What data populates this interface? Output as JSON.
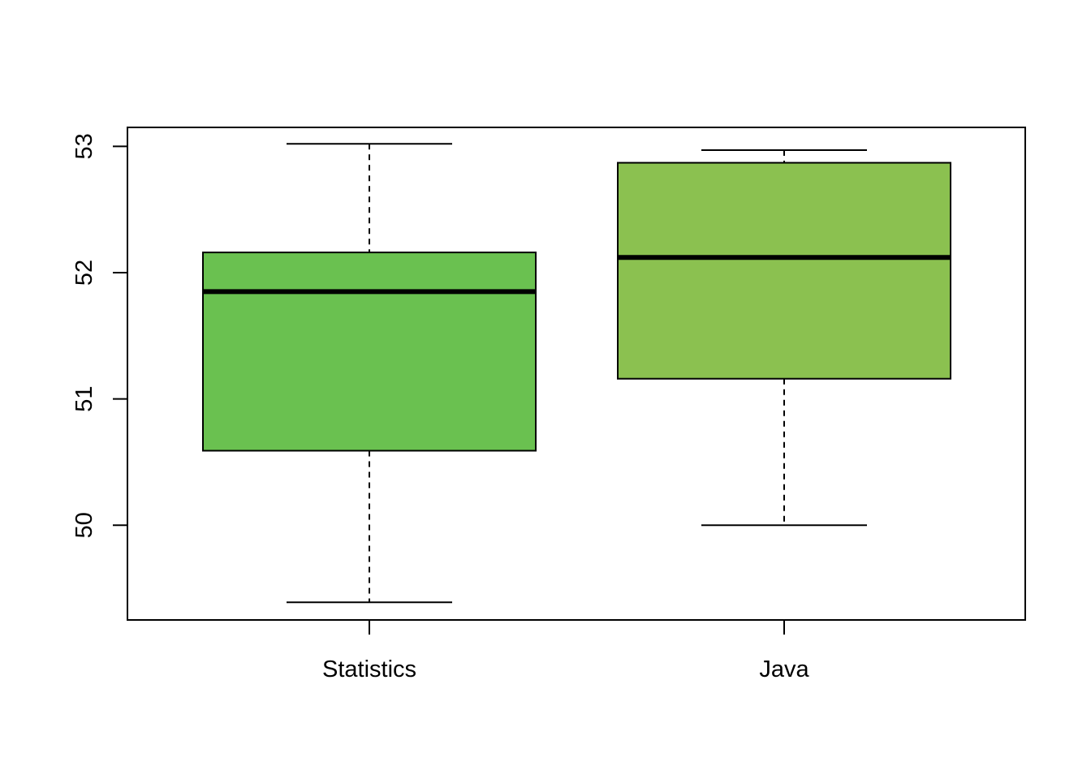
{
  "chart_data": {
    "type": "boxplot",
    "title": "",
    "xlabel": "",
    "ylabel": "",
    "ylim": [
      49.25,
      53.15
    ],
    "y_ticks": [
      50,
      51,
      52,
      53
    ],
    "grid": false,
    "categories": [
      "Statistics",
      "Java"
    ],
    "boxes": [
      {
        "category": "Statistics",
        "min": 49.39,
        "q1": 50.59,
        "median": 51.85,
        "q3": 52.16,
        "max": 53.02,
        "color": "#6AC150"
      },
      {
        "category": "Java",
        "min": 50.0,
        "q1": 51.16,
        "median": 52.12,
        "q3": 52.87,
        "max": 52.97,
        "color": "#8BC150"
      }
    ]
  }
}
